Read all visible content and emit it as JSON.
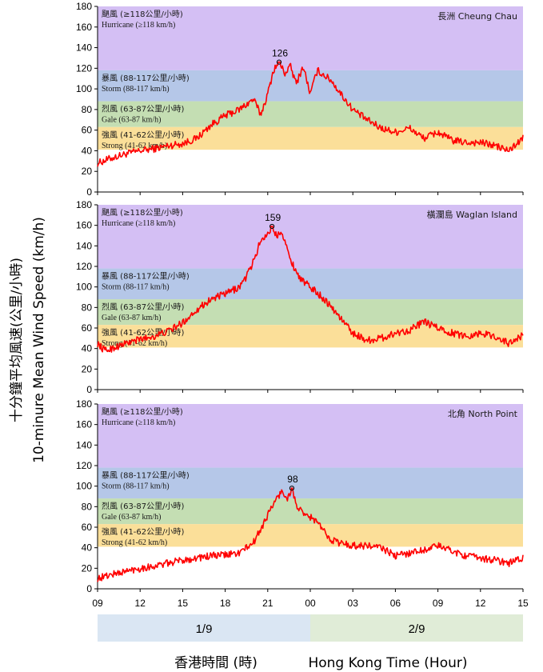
{
  "chart_data": {
    "type": "line",
    "xlabel_zh": "香港時間 (時)",
    "xlabel_en": "Hong Kong Time (Hour)",
    "ylabel_zh": "十分鐘平均風速(公里/小時)",
    "ylabel_en": "10-minure Mean Wind Speed (km/h)",
    "ylim": [
      0,
      180
    ],
    "y_ticks": [
      0,
      20,
      40,
      60,
      80,
      100,
      120,
      140,
      160,
      180
    ],
    "x_ticks": [
      "09",
      "12",
      "15",
      "18",
      "21",
      "00",
      "03",
      "06",
      "09",
      "12",
      "15"
    ],
    "x_hours": [
      0,
      3,
      6,
      9,
      12,
      15,
      18,
      21,
      24,
      27,
      30
    ],
    "dates": [
      {
        "label": "1/9",
        "from": 0,
        "to": 15,
        "color": "#dae6f3"
      },
      {
        "label": "2/9",
        "from": 15,
        "to": 30,
        "color": "#e0ecd7"
      }
    ],
    "bands": [
      {
        "zh": "颶風 (≥118公里/小時)",
        "en": "Hurricane (≥118 km/h)",
        "from": 118,
        "to": 180,
        "color": "#d4bff4"
      },
      {
        "zh": "暴風 (88-117公里/小時)",
        "en": "Storm (88-117 km/h)",
        "from": 88,
        "to": 118,
        "color": "#b5c7e8"
      },
      {
        "zh": "烈風 (63-87公里/小時)",
        "en": "Gale (63-87 km/h)",
        "from": 63,
        "to": 88,
        "color": "#c4deb3"
      },
      {
        "zh": "強風 (41-62公里/小時)",
        "en": "Strong (41-62 km/h)",
        "from": 41,
        "to": 63,
        "color": "#fbdf99"
      }
    ],
    "line_color": "#ff0000",
    "panels": [
      {
        "station": "長洲 Cheung Chau",
        "peak": {
          "label": "126",
          "x": 12.8,
          "y": 126
        },
        "x": [
          0,
          1,
          2,
          3,
          4,
          5,
          6,
          7,
          8,
          9,
          10,
          11,
          11.5,
          12,
          12.4,
          12.8,
          13.2,
          13.6,
          14,
          14.5,
          15,
          15.5,
          16,
          16.5,
          17,
          18,
          19,
          20,
          21,
          22,
          23,
          24,
          25,
          26,
          27,
          28,
          29,
          30
        ],
        "values": [
          28,
          33,
          37,
          40,
          42,
          45,
          47,
          52,
          65,
          74,
          80,
          90,
          75,
          95,
          118,
          126,
          115,
          122,
          105,
          122,
          95,
          118,
          113,
          108,
          98,
          80,
          70,
          62,
          58,
          62,
          52,
          58,
          50,
          48,
          48,
          45,
          40,
          52
        ]
      },
      {
        "station": "橫瀾島 Waglan Island",
        "peak": {
          "label": "159",
          "x": 12.3,
          "y": 159
        },
        "x": [
          0,
          0.5,
          1,
          2,
          3,
          4,
          5,
          6,
          7,
          8,
          9,
          10,
          10.5,
          11,
          11.5,
          12,
          12.3,
          12.6,
          13,
          13.5,
          14,
          14.5,
          15,
          16,
          17,
          18,
          19,
          20,
          21,
          22,
          23,
          24,
          25,
          26,
          27,
          28,
          29,
          30
        ],
        "values": [
          45,
          38,
          40,
          45,
          49,
          52,
          57,
          65,
          78,
          88,
          93,
          100,
          110,
          125,
          145,
          152,
          159,
          150,
          155,
          130,
          115,
          105,
          100,
          88,
          72,
          55,
          48,
          50,
          55,
          58,
          66,
          60,
          55,
          52,
          55,
          52,
          45,
          53
        ]
      },
      {
        "station": "北角 North Point",
        "peak": {
          "label": "98",
          "x": 13.7,
          "y": 98
        },
        "x": [
          0,
          1,
          2,
          3,
          4,
          5,
          6,
          7,
          8,
          9,
          10,
          11,
          11.5,
          12,
          12.5,
          13,
          13.4,
          13.7,
          14,
          14.5,
          15,
          15.5,
          16,
          16.5,
          17,
          18,
          19,
          20,
          21,
          22,
          23,
          24,
          25,
          26,
          27,
          28,
          29,
          30
        ],
        "values": [
          10,
          14,
          17,
          20,
          22,
          25,
          28,
          30,
          32,
          33,
          35,
          45,
          58,
          72,
          85,
          95,
          88,
          98,
          82,
          72,
          70,
          65,
          55,
          48,
          45,
          42,
          42,
          40,
          32,
          35,
          38,
          42,
          37,
          32,
          30,
          28,
          25,
          30
        ]
      }
    ]
  }
}
